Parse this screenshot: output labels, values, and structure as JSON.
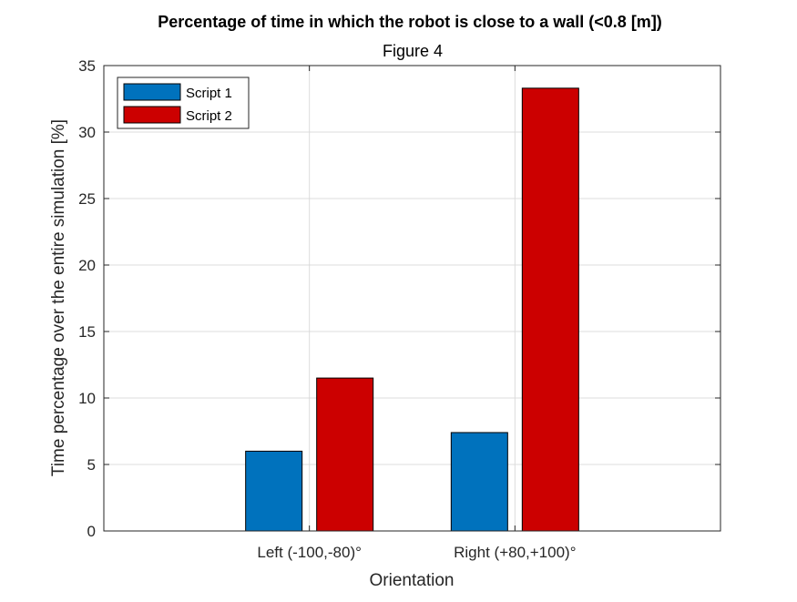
{
  "chart_data": {
    "type": "bar",
    "title": "Percentage of time in which the robot is close to a wall (<0.8 [m])",
    "subtitle": "Figure 4",
    "xlabel": "Orientation",
    "ylabel": "Time percentage over the entire simulation [%]",
    "categories": [
      "Left (-100,-80)°",
      "Right (+80,+100)°"
    ],
    "series": [
      {
        "name": "Script 1",
        "values": [
          6.0,
          7.4
        ],
        "color": "#0072BD"
      },
      {
        "name": "Script 2",
        "values": [
          11.5,
          33.3
        ],
        "color": "#CC0000"
      }
    ],
    "ylim": [
      0,
      35
    ],
    "yticks": [
      "0",
      "5",
      "10",
      "15",
      "20",
      "25",
      "30",
      "35"
    ],
    "grid": true,
    "legend_position": "top-left"
  }
}
